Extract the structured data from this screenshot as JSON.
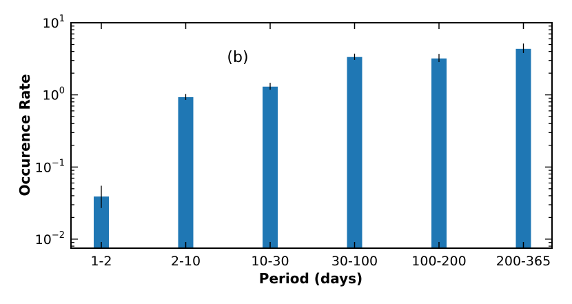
{
  "chart_data": {
    "type": "bar",
    "title": "",
    "annotation": "(b)",
    "xlabel": "Period (days)",
    "ylabel": "Occurence Rate",
    "yscale": "log",
    "ylim": [
      0.0075,
      10
    ],
    "yticks": [
      {
        "value": 0.01,
        "base": "10",
        "exp": "−2"
      },
      {
        "value": 0.1,
        "base": "10",
        "exp": "−1"
      },
      {
        "value": 1,
        "base": "10",
        "exp": "0"
      },
      {
        "value": 10,
        "base": "10",
        "exp": "1"
      }
    ],
    "categories": [
      "1-2",
      "2-10",
      "10-30",
      "30-100",
      "100-200",
      "200-365"
    ],
    "values": [
      0.039,
      0.93,
      1.3,
      3.35,
      3.2,
      4.35
    ],
    "errors_low": [
      0.012,
      0.08,
      0.12,
      0.3,
      0.35,
      0.55
    ],
    "errors_high": [
      0.016,
      0.1,
      0.17,
      0.38,
      0.5,
      0.8
    ],
    "bar_color": "#1f77b4",
    "grid": false,
    "legend": "none"
  }
}
